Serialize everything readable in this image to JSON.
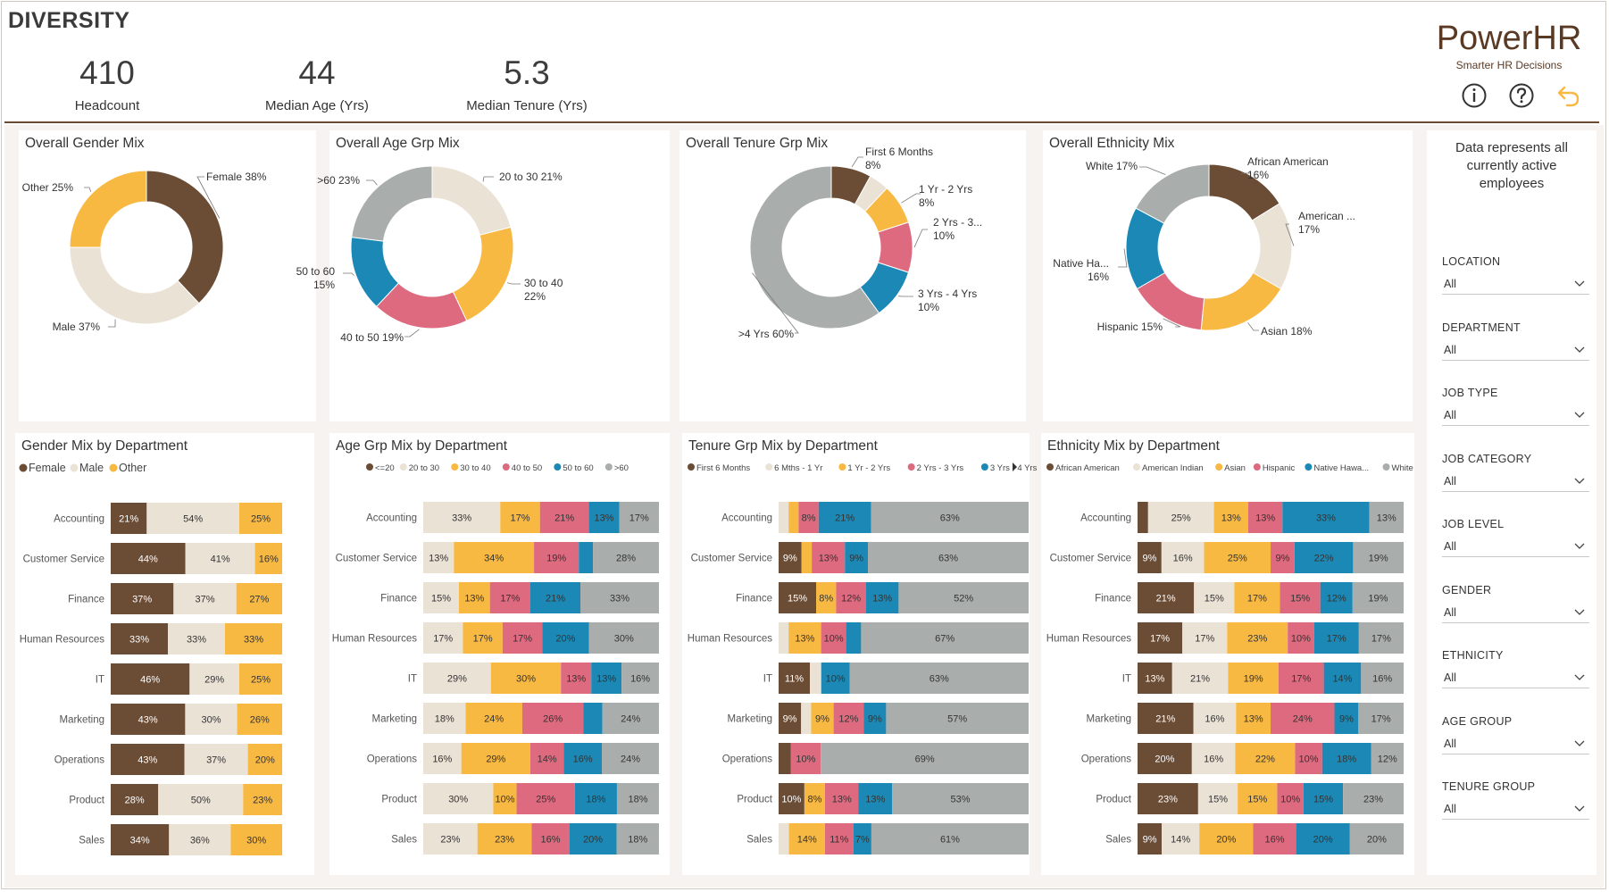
{
  "page_title": "DIVERSITY",
  "kpis": [
    {
      "value": "410",
      "label": "Headcount"
    },
    {
      "value": "44",
      "label": "Median Age (Yrs)"
    },
    {
      "value": "5.3",
      "label": "Median Tenure (Yrs)"
    }
  ],
  "brand": {
    "name": "PowerHR",
    "tagline": "Smarter HR Decisions",
    "color": "#5b3a24"
  },
  "header_icons": [
    "info-icon",
    "help-icon",
    "back-arrow-icon"
  ],
  "palette": {
    "c1": "#6b4c35",
    "c2": "#ebe2d6",
    "c3": "#f8b943",
    "c4": "#de6a7f",
    "c5": "#1b88b5",
    "c6": "#a9aeac"
  },
  "slicer_note": "Data represents all currently active employees",
  "slicers": [
    {
      "label": "LOCATION",
      "value": "All"
    },
    {
      "label": "DEPARTMENT",
      "value": "All"
    },
    {
      "label": "JOB TYPE",
      "value": "All"
    },
    {
      "label": "JOB CATEGORY",
      "value": "All"
    },
    {
      "label": "JOB LEVEL",
      "value": "All"
    },
    {
      "label": "GENDER",
      "value": "All"
    },
    {
      "label": "ETHNICITY",
      "value": "All"
    },
    {
      "label": "AGE GROUP",
      "value": "All"
    },
    {
      "label": "TENURE GROUP",
      "value": "All"
    }
  ],
  "chart_data": [
    {
      "type": "pie",
      "title": "Overall Gender Mix",
      "slices": [
        {
          "name": "Female",
          "value": 38,
          "label": "Female 38%"
        },
        {
          "name": "Male",
          "value": 37,
          "label": "Male 37%"
        },
        {
          "name": "Other",
          "value": 25,
          "label": "Other 25%"
        }
      ]
    },
    {
      "type": "pie",
      "title": "Overall Age Grp Mix",
      "slices": [
        {
          "name": "20 to 30",
          "value": 21,
          "label": "20 to 30 21%"
        },
        {
          "name": "30 to 40",
          "value": 22,
          "label": "30 to 40\n22%"
        },
        {
          "name": "40 to 50",
          "value": 19,
          "label": "40 to 50 19%"
        },
        {
          "name": "50 to 60",
          "value": 15,
          "label": "50 to 60\n15%"
        },
        {
          "name": ">60",
          "value": 23,
          "label": ">60 23%"
        }
      ]
    },
    {
      "type": "pie",
      "title": "Overall Tenure Grp Mix",
      "slices": [
        {
          "name": "First 6 Months",
          "value": 8,
          "label": "First 6 Months\n8%"
        },
        {
          "name": "6 Mths - 1 Yr",
          "value": 4,
          "label": ""
        },
        {
          "name": "1 Yr - 2 Yrs",
          "value": 8,
          "label": "1 Yr - 2 Yrs\n8%"
        },
        {
          "name": "2 Yrs - 3 Yrs",
          "value": 10,
          "label": "2 Yrs - 3...\n10%"
        },
        {
          "name": "3 Yrs - 4 Yrs",
          "value": 10,
          "label": "3 Yrs - 4 Yrs\n10%"
        },
        {
          "name": ">4 Yrs",
          "value": 60,
          "label": ">4 Yrs 60%"
        }
      ]
    },
    {
      "type": "pie",
      "title": "Overall Ethnicity Mix",
      "slices": [
        {
          "name": "African American",
          "value": 16,
          "label": "African American\n16%"
        },
        {
          "name": "American Indian",
          "value": 17,
          "label": "American ...\n17%"
        },
        {
          "name": "Asian",
          "value": 18,
          "label": "Asian 18%"
        },
        {
          "name": "Hispanic",
          "value": 15,
          "label": "Hispanic 15%"
        },
        {
          "name": "Native Hawaiian",
          "value": 16,
          "label": "Native Ha...\n16%"
        },
        {
          "name": "White",
          "value": 17,
          "label": "White 17%"
        }
      ]
    },
    {
      "type": "bar",
      "stacked": true,
      "orientation": "horizontal",
      "title": "Gender Mix by Department",
      "categories": [
        "Accounting",
        "Customer Service",
        "Finance",
        "Human Resources",
        "IT",
        "Marketing",
        "Operations",
        "Product",
        "Sales"
      ],
      "legend": [
        "Female",
        "Male",
        "Other"
      ],
      "series": [
        {
          "name": "Female",
          "values": [
            21,
            44,
            37,
            33,
            46,
            43,
            43,
            28,
            34
          ]
        },
        {
          "name": "Male",
          "values": [
            54,
            41,
            37,
            33,
            29,
            30,
            37,
            50,
            36
          ]
        },
        {
          "name": "Other",
          "values": [
            25,
            16,
            27,
            33,
            25,
            26,
            20,
            23,
            30
          ]
        }
      ]
    },
    {
      "type": "bar",
      "stacked": true,
      "orientation": "horizontal",
      "title": "Age Grp Mix by Department",
      "categories": [
        "Accounting",
        "Customer Service",
        "Finance",
        "Human Resources",
        "IT",
        "Marketing",
        "Operations",
        "Product",
        "Sales"
      ],
      "legend": [
        "<=20",
        "20 to 30",
        "30 to 40",
        "40 to 50",
        "50 to 60",
        ">60"
      ],
      "series": [
        {
          "name": "<=20",
          "values": [
            0,
            0,
            0,
            0,
            0,
            0,
            0,
            0,
            0
          ]
        },
        {
          "name": "20 to 30",
          "values": [
            33,
            13,
            15,
            17,
            29,
            18,
            16,
            30,
            23
          ]
        },
        {
          "name": "30 to 40",
          "values": [
            17,
            34,
            13,
            17,
            30,
            24,
            29,
            10,
            23
          ]
        },
        {
          "name": "40 to 50",
          "values": [
            21,
            19,
            17,
            17,
            13,
            26,
            14,
            25,
            16
          ]
        },
        {
          "name": "50 to 60",
          "values": [
            13,
            6,
            21,
            20,
            13,
            8,
            16,
            18,
            20
          ]
        },
        {
          "name": ">60",
          "values": [
            17,
            28,
            33,
            30,
            16,
            24,
            24,
            18,
            18
          ]
        }
      ]
    },
    {
      "type": "bar",
      "stacked": true,
      "orientation": "horizontal",
      "title": "Tenure Grp Mix by Department",
      "categories": [
        "Accounting",
        "Customer Service",
        "Finance",
        "Human Resources",
        "IT",
        "Marketing",
        "Operations",
        "Product",
        "Sales"
      ],
      "legend": [
        "First 6 Months",
        "6 Mths - 1 Yr",
        "1 Yr - 2 Yrs",
        "2 Yrs - 3 Yrs",
        "3 Yrs - 4 Yrs"
      ],
      "series": [
        {
          "name": "First 6 Months",
          "values": [
            0,
            9,
            15,
            0,
            11,
            9,
            4,
            10,
            0
          ]
        },
        {
          "name": "6 Mths - 1 Yr",
          "values": [
            4,
            0,
            0,
            4,
            4,
            4,
            0,
            0,
            4
          ]
        },
        {
          "name": "1 Yr - 2 Yrs",
          "values": [
            4,
            4,
            8,
            13,
            0,
            9,
            0,
            8,
            14
          ]
        },
        {
          "name": "2 Yrs - 3 Yrs",
          "values": [
            8,
            13,
            12,
            10,
            0,
            12,
            10,
            13,
            11
          ]
        },
        {
          "name": "3 Yrs - 4 Yrs",
          "values": [
            21,
            9,
            13,
            6,
            10,
            9,
            0,
            13,
            7
          ]
        },
        {
          "name": ">4 Yrs",
          "values": [
            63,
            63,
            52,
            67,
            63,
            57,
            69,
            53,
            61
          ]
        }
      ]
    },
    {
      "type": "bar",
      "stacked": true,
      "orientation": "horizontal",
      "title": "Ethnicity Mix by Department",
      "categories": [
        "Accounting",
        "Customer Service",
        "Finance",
        "Human Resources",
        "IT",
        "Marketing",
        "Operations",
        "Product",
        "Sales"
      ],
      "legend": [
        "African American",
        "American Indian",
        "Asian",
        "Hispanic",
        "Native Hawa...",
        "White"
      ],
      "series": [
        {
          "name": "African American",
          "values": [
            4,
            9,
            21,
            17,
            13,
            21,
            20,
            23,
            9
          ]
        },
        {
          "name": "American Indian",
          "values": [
            25,
            16,
            15,
            17,
            21,
            16,
            16,
            15,
            14
          ]
        },
        {
          "name": "Asian",
          "values": [
            13,
            25,
            17,
            23,
            19,
            13,
            22,
            15,
            20
          ]
        },
        {
          "name": "Hispanic",
          "values": [
            13,
            9,
            15,
            10,
            17,
            24,
            10,
            10,
            16
          ]
        },
        {
          "name": "Native Hawaiian",
          "values": [
            33,
            22,
            12,
            17,
            14,
            9,
            18,
            15,
            20
          ]
        },
        {
          "name": "White",
          "values": [
            13,
            19,
            19,
            17,
            16,
            17,
            12,
            23,
            20
          ]
        }
      ]
    }
  ]
}
